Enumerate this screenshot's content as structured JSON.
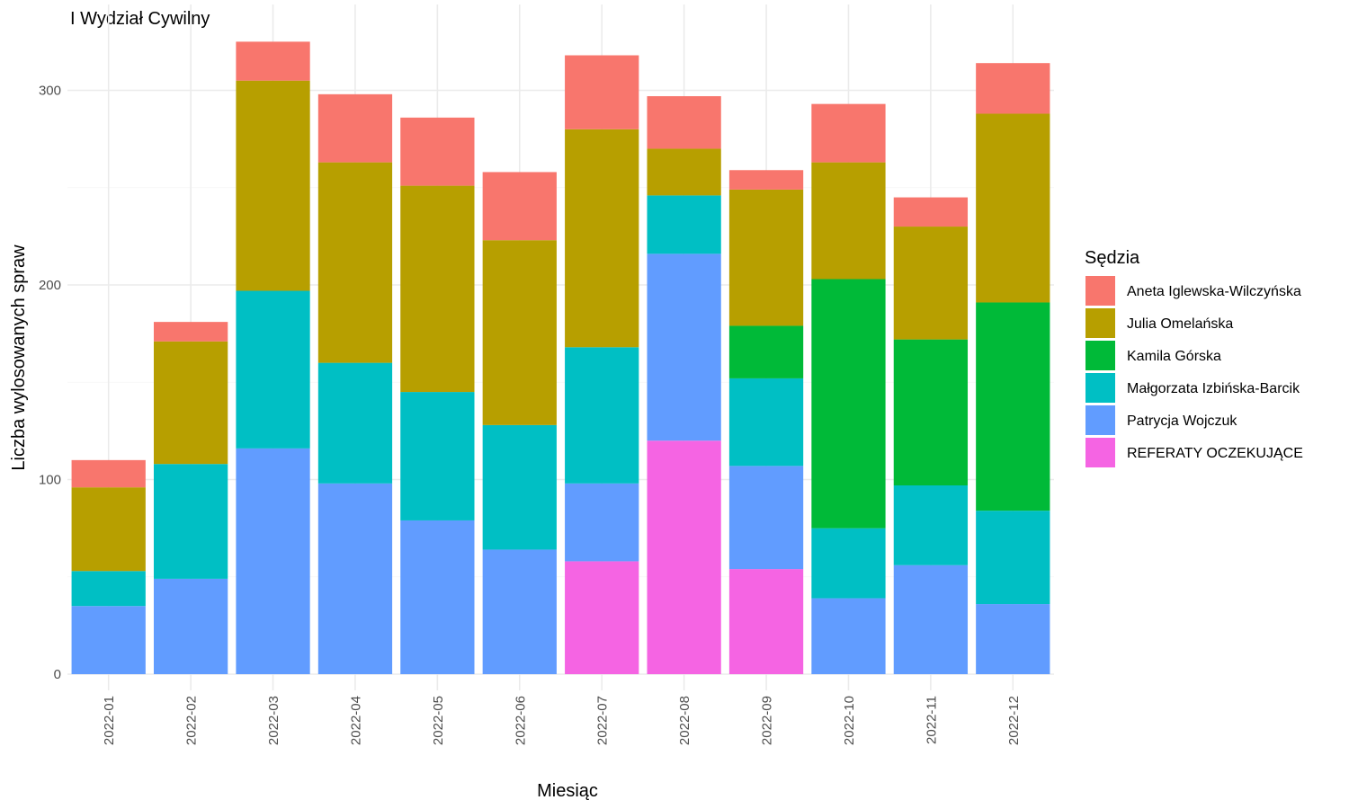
{
  "chart_data": {
    "type": "bar",
    "stacked": true,
    "title": "I Wydział Cywilny",
    "xlabel": "Miesiąc",
    "ylabel": "Liczba wylosowanych spraw",
    "ylim": [
      0,
      330
    ],
    "yticks": [
      0,
      100,
      200,
      300
    ],
    "grid": true,
    "legend_position": "right",
    "legend_title": "Sędzia",
    "categories": [
      "2022-01",
      "2022-02",
      "2022-03",
      "2022-04",
      "2022-05",
      "2022-06",
      "2022-07",
      "2022-08",
      "2022-09",
      "2022-10",
      "2022-11",
      "2022-12"
    ],
    "series": [
      {
        "name": "Aneta Iglewska-Wilczyńska",
        "color": "#F8766D",
        "values": [
          14,
          10,
          20,
          35,
          35,
          35,
          38,
          27,
          10,
          30,
          15,
          26
        ]
      },
      {
        "name": "Julia Omelańska",
        "color": "#B79F00",
        "values": [
          43,
          63,
          108,
          103,
          106,
          95,
          112,
          24,
          70,
          60,
          58,
          97
        ]
      },
      {
        "name": "Kamila Górska",
        "color": "#00BA38",
        "values": [
          0,
          0,
          0,
          0,
          0,
          0,
          0,
          0,
          27,
          128,
          75,
          107
        ]
      },
      {
        "name": "Małgorzata Izbińska-Barcik",
        "color": "#00BFC4",
        "values": [
          18,
          59,
          81,
          62,
          66,
          64,
          70,
          30,
          45,
          36,
          41,
          48
        ]
      },
      {
        "name": "Patrycja Wojczuk",
        "color": "#619CFF",
        "values": [
          35,
          49,
          116,
          98,
          79,
          64,
          40,
          96,
          53,
          39,
          56,
          36
        ]
      },
      {
        "name": "REFERATY OCZEKUJĄCE",
        "color": "#F564E3",
        "values": [
          0,
          0,
          0,
          0,
          0,
          0,
          58,
          120,
          54,
          0,
          0,
          0
        ]
      }
    ]
  }
}
